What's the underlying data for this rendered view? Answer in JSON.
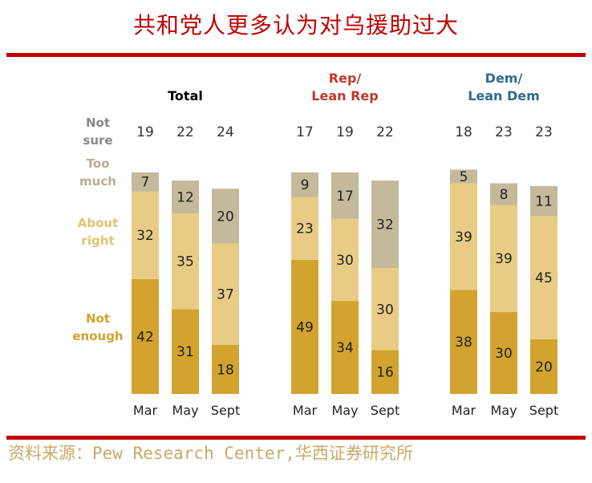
{
  "title": "共和党人更多认为对乌援助过大",
  "source": "资料来源：Pew Research Center,华西证券研究所",
  "colors": {
    "not_enough": "#d2a32f",
    "about_right": "#e8cc85",
    "too_much": "#c4b99a",
    "rep": "#c0392b",
    "dem": "#2e6b92",
    "rule": "#c00000",
    "label_gray": "#888888"
  },
  "row_labels": {
    "not_sure": [
      "Not",
      "sure"
    ],
    "too_much": [
      "Too",
      "much"
    ],
    "about_right": [
      "About",
      "right"
    ],
    "not_enough": [
      "Not",
      "enough"
    ]
  },
  "chart_data": {
    "type": "bar",
    "stacked": true,
    "categories": [
      "Mar",
      "May",
      "Sept"
    ],
    "groups": [
      {
        "name": "Total",
        "title_lines": [
          "Total"
        ],
        "title_color": "#000000",
        "not_sure": [
          19,
          22,
          24
        ],
        "series": [
          {
            "name": "Not enough",
            "values": [
              42,
              31,
              18
            ]
          },
          {
            "name": "About right",
            "values": [
              32,
              35,
              37
            ]
          },
          {
            "name": "Too much",
            "values": [
              7,
              12,
              20
            ]
          }
        ]
      },
      {
        "name": "Rep/ Lean Rep",
        "title_lines": [
          "Rep/",
          "Lean Rep"
        ],
        "title_color": "#c0392b",
        "not_sure": [
          17,
          19,
          22
        ],
        "series": [
          {
            "name": "Not enough",
            "values": [
              49,
              34,
              16
            ]
          },
          {
            "name": "About right",
            "values": [
              23,
              30,
              30
            ]
          },
          {
            "name": "Too much",
            "values": [
              9,
              17,
              32
            ]
          }
        ]
      },
      {
        "name": "Dem/ Lean Dem",
        "title_lines": [
          "Dem/",
          "Lean Dem"
        ],
        "title_color": "#2e6b92",
        "not_sure": [
          18,
          23,
          23
        ],
        "series": [
          {
            "name": "Not enough",
            "values": [
              38,
              30,
              20
            ]
          },
          {
            "name": "About right",
            "values": [
              39,
              39,
              45
            ]
          },
          {
            "name": "Too much",
            "values": [
              5,
              8,
              11
            ]
          }
        ]
      }
    ]
  }
}
